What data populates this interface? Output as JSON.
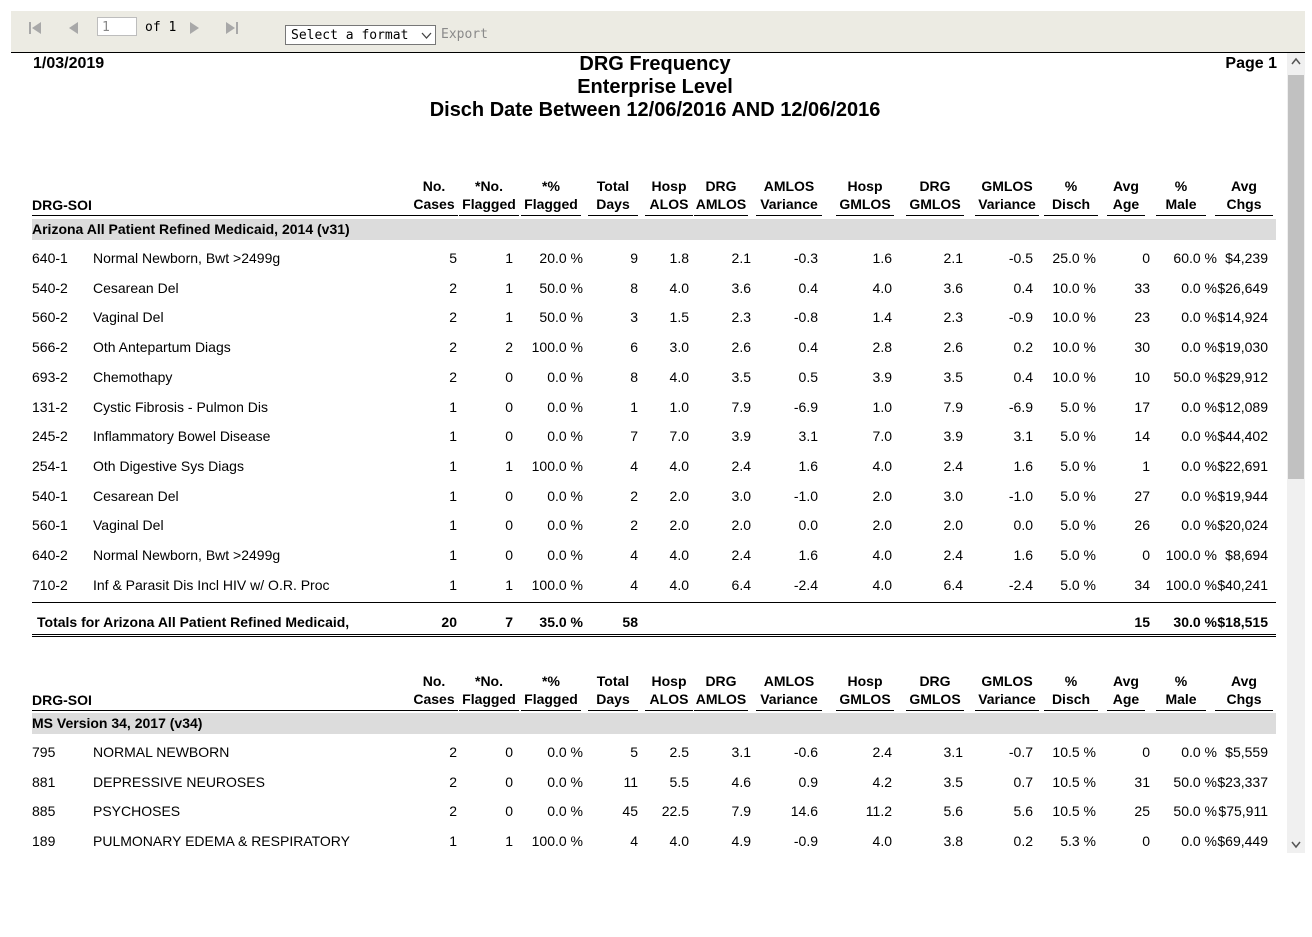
{
  "toolbar": {
    "page_number": "1",
    "page_of": "of 1",
    "format_select": "Select a format",
    "export_label": "Export"
  },
  "report": {
    "date": "1/03/2019",
    "page": "Page 1",
    "title_lines": [
      "DRG Frequency",
      "Enterprise Level",
      "Disch Date Between 12/06/2016 AND 12/06/2016"
    ]
  },
  "columns": [
    {
      "l1": "No.",
      "l2": "Cases"
    },
    {
      "l1": "*No.",
      "l2": "Flagged"
    },
    {
      "l1": "*%",
      "l2": "Flagged"
    },
    {
      "l1": "Total",
      "l2": "Days"
    },
    {
      "l1": "Hosp",
      "l2": "ALOS"
    },
    {
      "l1": "DRG",
      "l2": "AMLOS"
    },
    {
      "l1": "AMLOS",
      "l2": "Variance"
    },
    {
      "l1": "Hosp",
      "l2": "GMLOS"
    },
    {
      "l1": "DRG",
      "l2": "GMLOS"
    },
    {
      "l1": "GMLOS",
      "l2": "Variance"
    },
    {
      "l1": "%",
      "l2": "Disch"
    },
    {
      "l1": "Avg",
      "l2": "Age"
    },
    {
      "l1": "%",
      "l2": "Male"
    },
    {
      "l1": "Avg",
      "l2": "Chgs"
    }
  ],
  "drg_header": "DRG-SOI",
  "groups": [
    {
      "name": "Arizona All Patient Refined Medicaid, 2014 (v31)",
      "rows": [
        {
          "code": "640-1",
          "desc": "Normal Newborn, Bwt >2499g",
          "v": [
            "5",
            "1",
            "20.0 %",
            "9",
            "1.8",
            "2.1",
            "-0.3",
            "1.6",
            "2.1",
            "-0.5",
            "25.0 %",
            "0",
            "60.0 %",
            "$4,239"
          ]
        },
        {
          "code": "540-2",
          "desc": "Cesarean Del",
          "v": [
            "2",
            "1",
            "50.0 %",
            "8",
            "4.0",
            "3.6",
            "0.4",
            "4.0",
            "3.6",
            "0.4",
            "10.0 %",
            "33",
            "0.0 %",
            "$26,649"
          ]
        },
        {
          "code": "560-2",
          "desc": "Vaginal Del",
          "v": [
            "2",
            "1",
            "50.0 %",
            "3",
            "1.5",
            "2.3",
            "-0.8",
            "1.4",
            "2.3",
            "-0.9",
            "10.0 %",
            "23",
            "0.0 %",
            "$14,924"
          ]
        },
        {
          "code": "566-2",
          "desc": "Oth Antepartum Diags",
          "v": [
            "2",
            "2",
            "100.0 %",
            "6",
            "3.0",
            "2.6",
            "0.4",
            "2.8",
            "2.6",
            "0.2",
            "10.0 %",
            "30",
            "0.0 %",
            "$19,030"
          ]
        },
        {
          "code": "693-2",
          "desc": "Chemothapy",
          "v": [
            "2",
            "0",
            "0.0 %",
            "8",
            "4.0",
            "3.5",
            "0.5",
            "3.9",
            "3.5",
            "0.4",
            "10.0 %",
            "10",
            "50.0 %",
            "$29,912"
          ]
        },
        {
          "code": "131-2",
          "desc": "Cystic Fibrosis - Pulmon Dis",
          "v": [
            "1",
            "0",
            "0.0 %",
            "1",
            "1.0",
            "7.9",
            "-6.9",
            "1.0",
            "7.9",
            "-6.9",
            "5.0 %",
            "17",
            "0.0 %",
            "$12,089"
          ]
        },
        {
          "code": "245-2",
          "desc": "Inflammatory Bowel Disease",
          "v": [
            "1",
            "0",
            "0.0 %",
            "7",
            "7.0",
            "3.9",
            "3.1",
            "7.0",
            "3.9",
            "3.1",
            "5.0 %",
            "14",
            "0.0 %",
            "$44,402"
          ]
        },
        {
          "code": "254-1",
          "desc": "Oth Digestive Sys Diags",
          "v": [
            "1",
            "1",
            "100.0 %",
            "4",
            "4.0",
            "2.4",
            "1.6",
            "4.0",
            "2.4",
            "1.6",
            "5.0 %",
            "1",
            "0.0 %",
            "$22,691"
          ]
        },
        {
          "code": "540-1",
          "desc": "Cesarean Del",
          "v": [
            "1",
            "0",
            "0.0 %",
            "2",
            "2.0",
            "3.0",
            "-1.0",
            "2.0",
            "3.0",
            "-1.0",
            "5.0 %",
            "27",
            "0.0 %",
            "$19,944"
          ]
        },
        {
          "code": "560-1",
          "desc": "Vaginal Del",
          "v": [
            "1",
            "0",
            "0.0 %",
            "2",
            "2.0",
            "2.0",
            "0.0",
            "2.0",
            "2.0",
            "0.0",
            "5.0 %",
            "26",
            "0.0 %",
            "$20,024"
          ]
        },
        {
          "code": "640-2",
          "desc": "Normal Newborn, Bwt >2499g",
          "v": [
            "1",
            "0",
            "0.0 %",
            "4",
            "4.0",
            "2.4",
            "1.6",
            "4.0",
            "2.4",
            "1.6",
            "5.0 %",
            "0",
            "100.0 %",
            "$8,694"
          ]
        },
        {
          "code": "710-2",
          "desc": "Inf & Parasit Dis Incl HIV w/ O.R. Proc",
          "v": [
            "1",
            "1",
            "100.0 %",
            "4",
            "4.0",
            "6.4",
            "-2.4",
            "4.0",
            "6.4",
            "-2.4",
            "5.0 %",
            "34",
            "100.0 %",
            "$40,241"
          ]
        }
      ],
      "totals": {
        "label": "Totals for Arizona All Patient Refined Medicaid,",
        "v": [
          "20",
          "7",
          "35.0 %",
          "58",
          "",
          "",
          "",
          "",
          "",
          "",
          "",
          "15",
          "30.0 %",
          "$18,515"
        ]
      }
    },
    {
      "name": "MS Version 34, 2017 (v34)",
      "rows": [
        {
          "code": "795",
          "desc": "NORMAL NEWBORN",
          "v": [
            "2",
            "0",
            "0.0 %",
            "5",
            "2.5",
            "3.1",
            "-0.6",
            "2.4",
            "3.1",
            "-0.7",
            "10.5 %",
            "0",
            "0.0 %",
            "$5,559"
          ]
        },
        {
          "code": "881",
          "desc": "DEPRESSIVE NEUROSES",
          "v": [
            "2",
            "0",
            "0.0 %",
            "11",
            "5.5",
            "4.6",
            "0.9",
            "4.2",
            "3.5",
            "0.7",
            "10.5 %",
            "31",
            "50.0 %",
            "$23,337"
          ]
        },
        {
          "code": "885",
          "desc": "PSYCHOSES",
          "v": [
            "2",
            "0",
            "0.0 %",
            "45",
            "22.5",
            "7.9",
            "14.6",
            "11.2",
            "5.6",
            "5.6",
            "10.5 %",
            "25",
            "50.0 %",
            "$75,911"
          ]
        },
        {
          "code": "189",
          "desc": "PULMONARY EDEMA & RESPIRATORY",
          "v": [
            "1",
            "1",
            "100.0 %",
            "4",
            "4.0",
            "4.9",
            "-0.9",
            "4.0",
            "3.8",
            "0.2",
            "5.3 %",
            "0",
            "0.0 %",
            "$69,449"
          ]
        }
      ]
    }
  ]
}
